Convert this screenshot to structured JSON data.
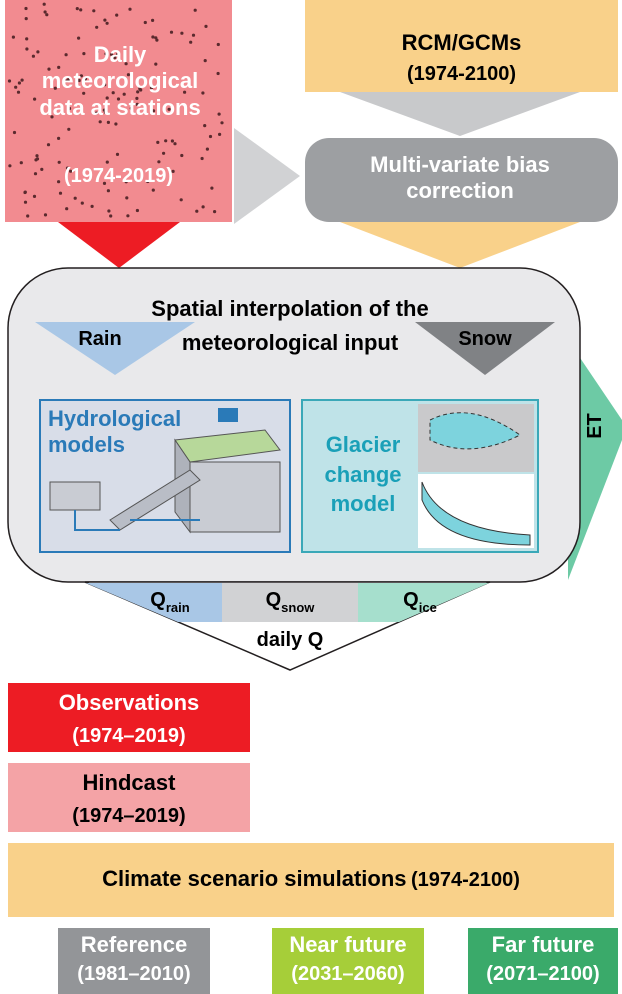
{
  "inputs": {
    "stations": {
      "label": "Daily meteorological data at stations",
      "period": "(1974-2019)"
    },
    "climate_models": {
      "label": "RCM/GCMs",
      "period": "(1974-2100)"
    },
    "bias_correction": {
      "label": "Multi-variate bias correction"
    }
  },
  "model": {
    "title": "Spatial interpolation of the meteorological input",
    "rain": "Rain",
    "snow": "Snow",
    "hydrological": "Hydrological models",
    "glacier": "Glacier change model",
    "et": "ET"
  },
  "outputs": {
    "flows": [
      {
        "symbol": "Q",
        "subscript": "rain"
      },
      {
        "symbol": "Q",
        "subscript": "snow"
      },
      {
        "symbol": "Q",
        "subscript": "ice"
      }
    ],
    "total": "daily Q"
  },
  "legend": {
    "observations": {
      "label": "Observations",
      "period": "(1974–2019)"
    },
    "hindcast": {
      "label": "Hindcast",
      "period": "(1974–2019)"
    },
    "scenarios": {
      "label": "Climate scenario simulations",
      "period": "(1974-2100)"
    },
    "periods": [
      {
        "label": "Reference",
        "period": "(1981–2010)"
      },
      {
        "label": "Near future",
        "period": "(2031–2060)"
      },
      {
        "label": "Far future",
        "period": "(2071–2100)"
      }
    ]
  }
}
